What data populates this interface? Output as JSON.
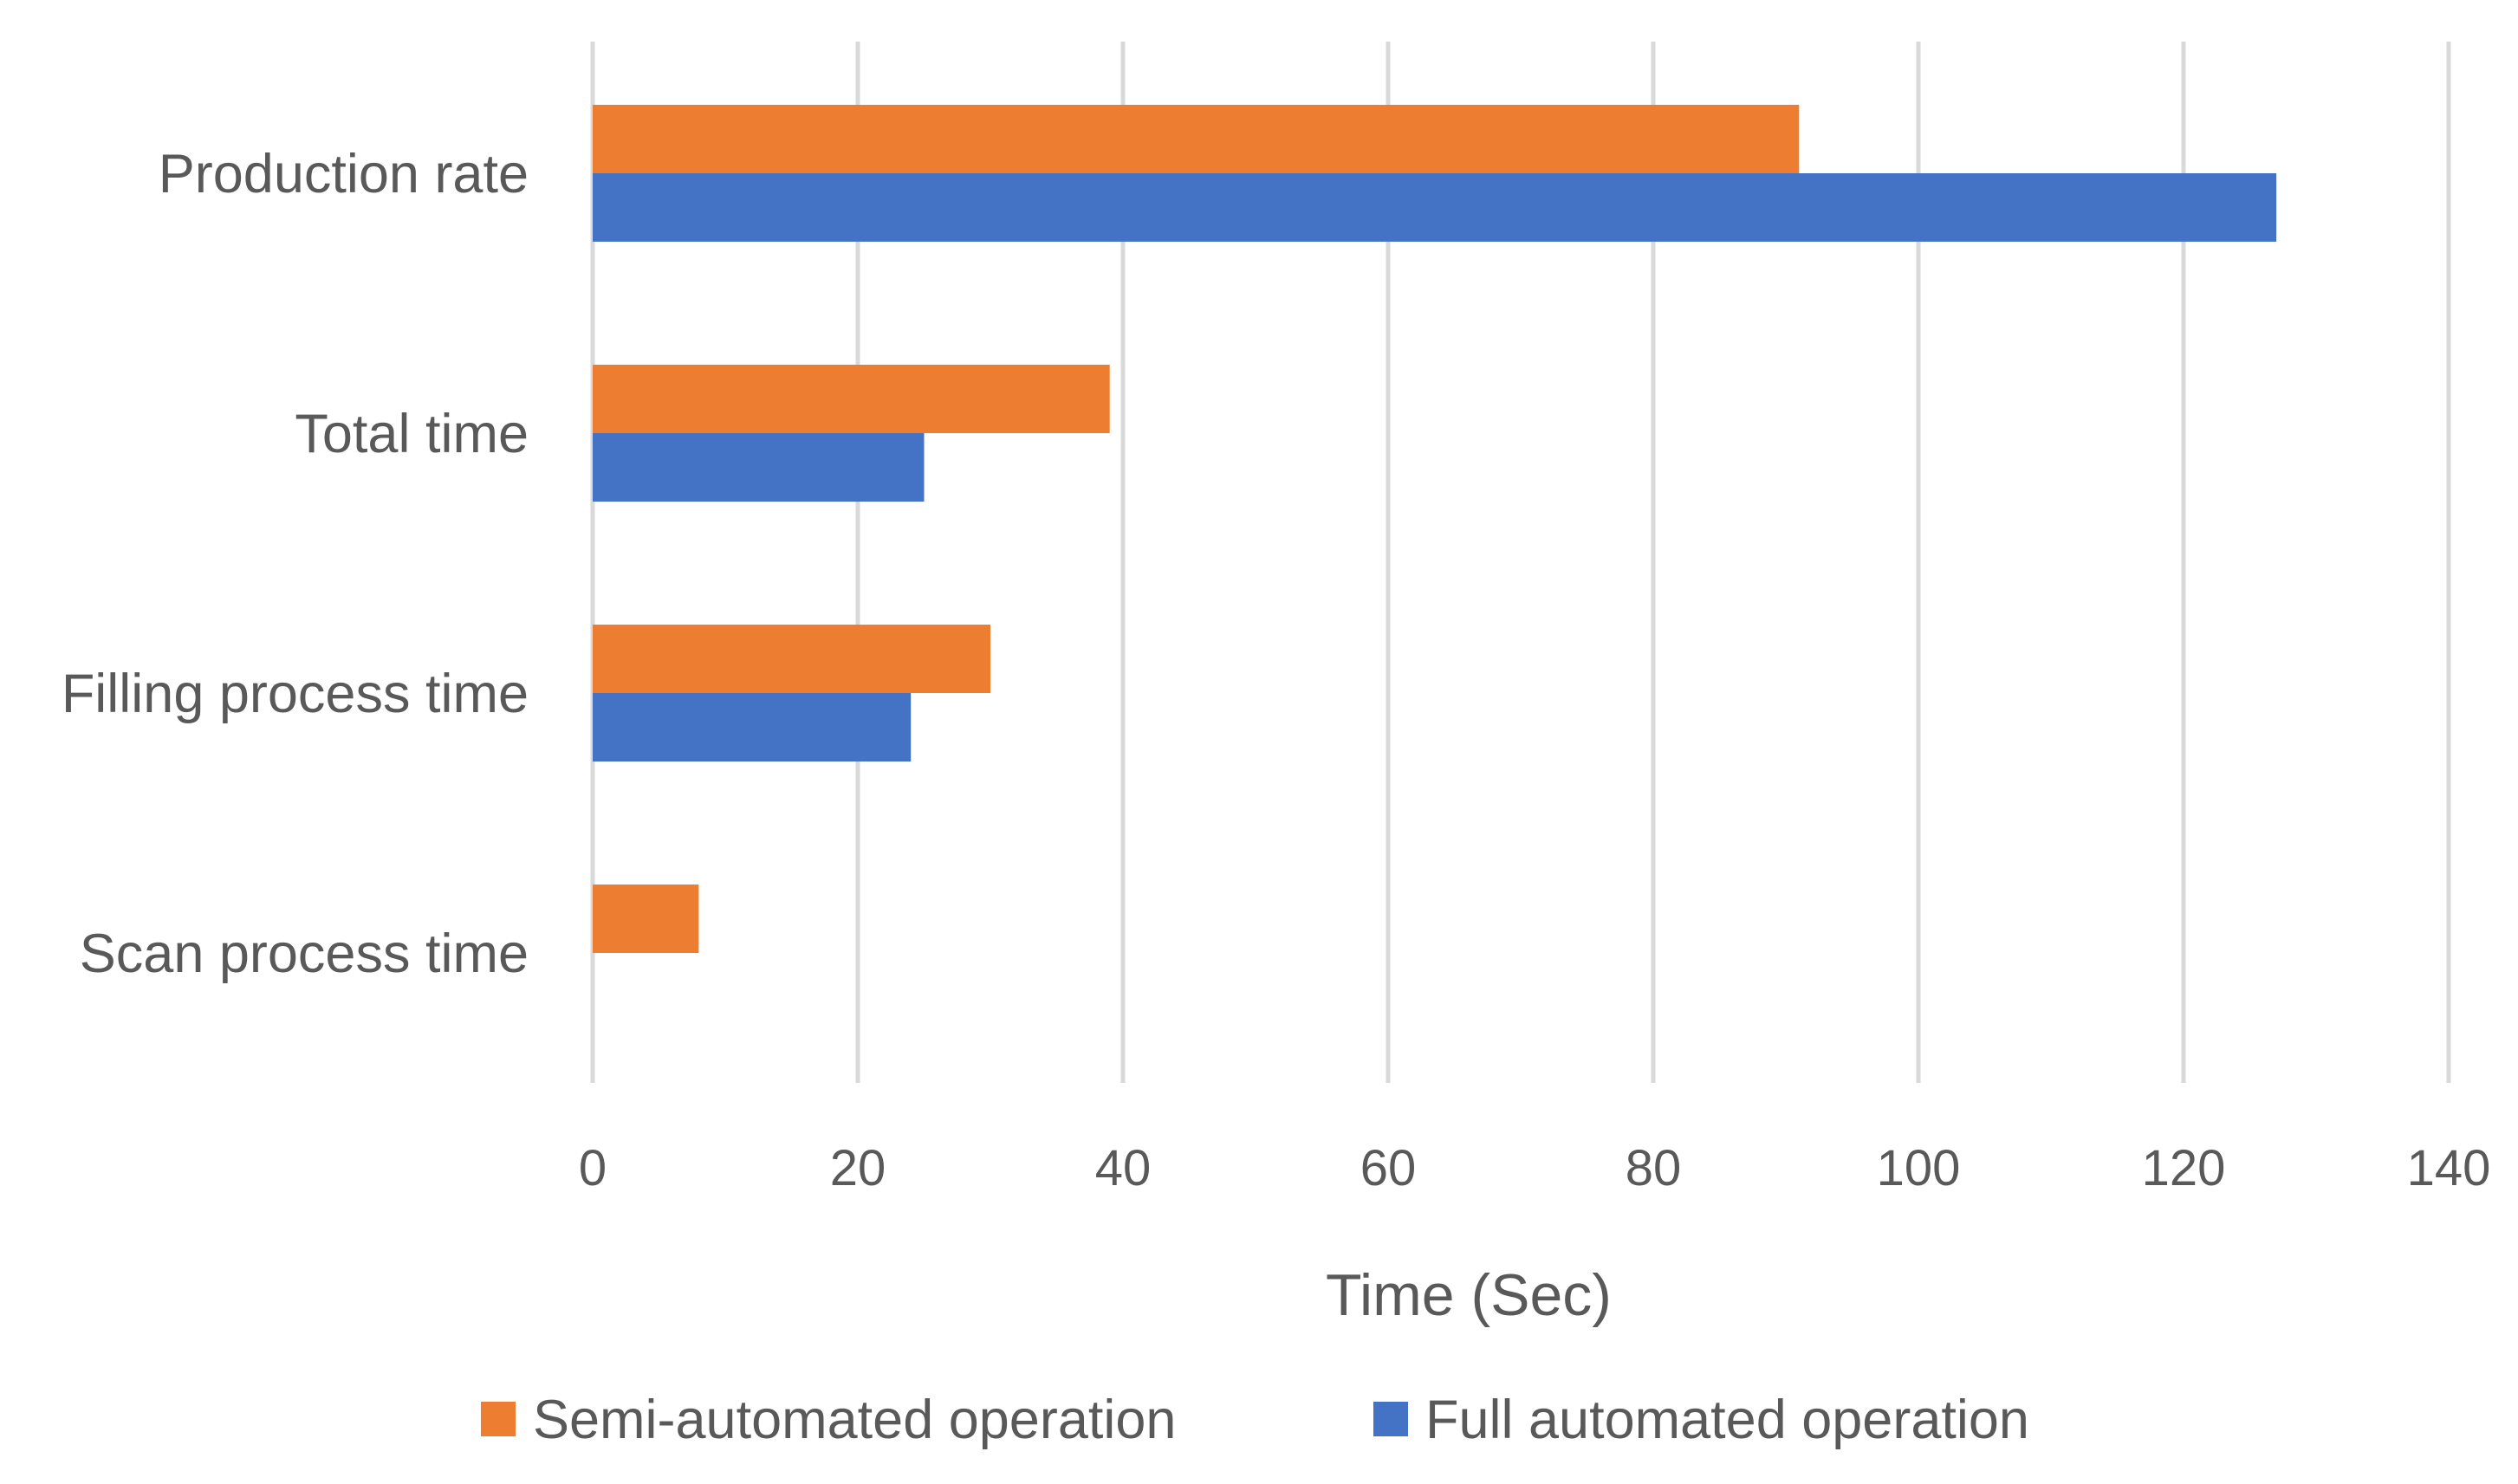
{
  "chart_data": {
    "type": "bar",
    "orientation": "horizontal",
    "categories": [
      "Production rate",
      "Total time",
      "Filling process time",
      "Scan process time"
    ],
    "series": [
      {
        "name": "Semi-automated operation",
        "color": "#ED7D31",
        "values": [
          91,
          39,
          30,
          8
        ]
      },
      {
        "name": "Full automated operation",
        "color": "#4472C4",
        "values": [
          127,
          25,
          24,
          0
        ]
      }
    ],
    "xlabel": "Time (Sec)",
    "ylabel": "",
    "xlim": [
      0,
      140
    ],
    "xticks": [
      0,
      20,
      40,
      60,
      80,
      100,
      120,
      140
    ],
    "grid": "vertical",
    "gridColor": "#D9D9D9",
    "legend": "bottom-center"
  }
}
